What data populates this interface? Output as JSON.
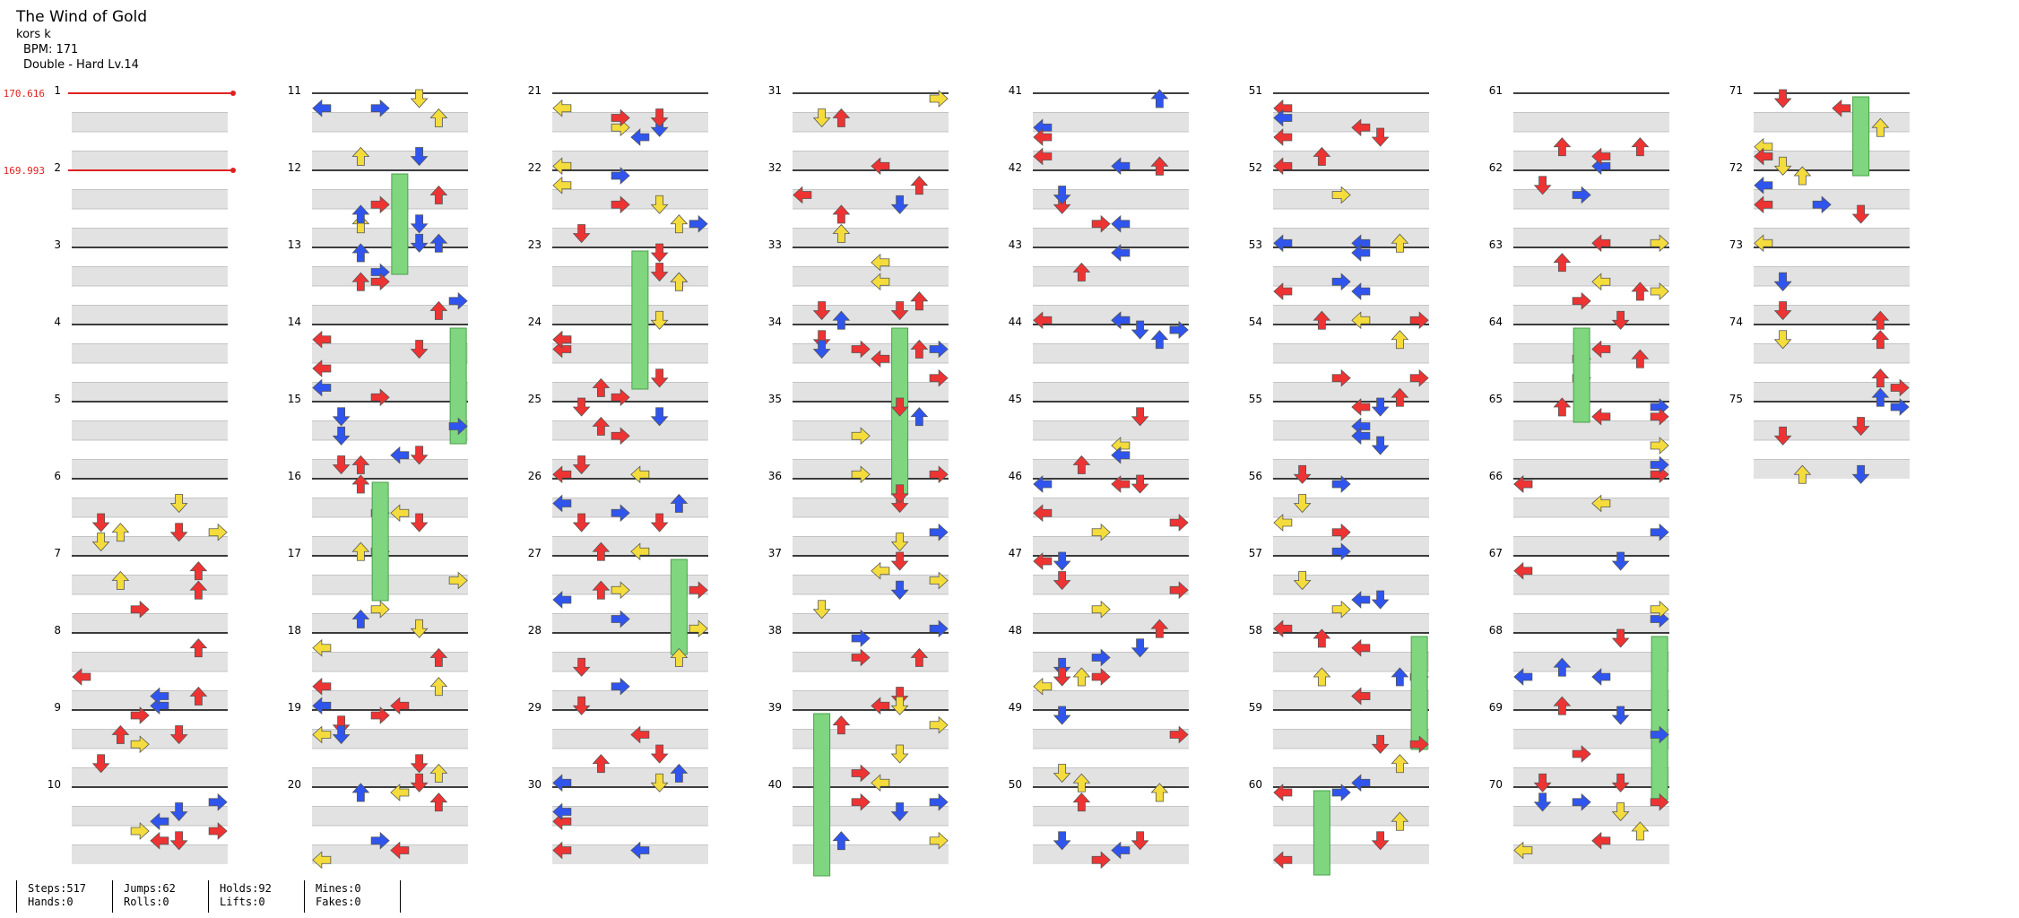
{
  "song": {
    "title": "The Wind of Gold",
    "artist": "kors k",
    "bpm_label": "BPM: 171",
    "difficulty_label": "Double - Hard  Lv.14"
  },
  "chart_data": {
    "type": "other",
    "layout": "stepchart",
    "total_measures": 75,
    "measures_per_column": 10,
    "lanes": 8,
    "bpm_changes": [
      {
        "measure": 1,
        "value": "170.616"
      },
      {
        "measure": 2,
        "value": "169.993"
      }
    ],
    "lane_colors": {
      "red": "#ee3333",
      "blue": "#2f55ee",
      "yellow": "#f4dc3c",
      "hold": "#7fd67f"
    }
  },
  "stats": {
    "steps": "Steps:517",
    "hands": "Hands:0",
    "jumps": "Jumps:62",
    "rolls": "Rolls:0",
    "holds": "Holds:92",
    "lifts": "Lifts:0",
    "mines": "Mines:0",
    "fakes": "Fakes:0"
  }
}
